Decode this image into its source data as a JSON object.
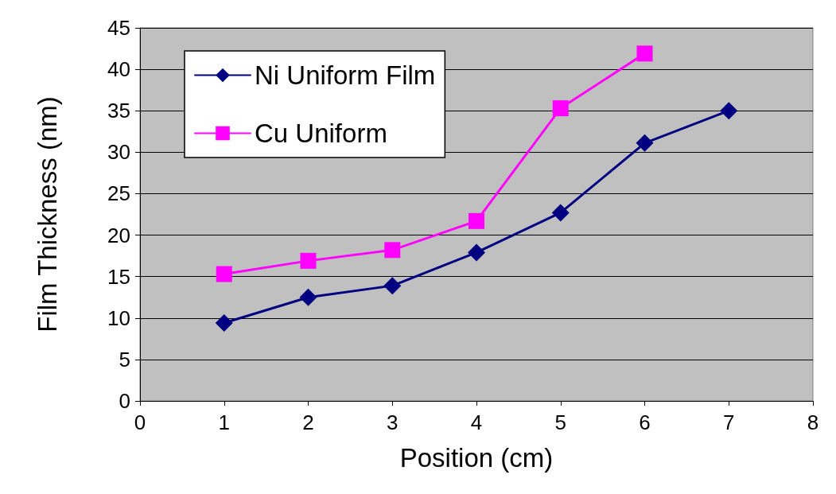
{
  "chart_data": {
    "type": "line",
    "xlabel": "Position (cm)",
    "ylabel": "Film Thickness (nm)",
    "xlim": [
      0,
      8
    ],
    "xticks": [
      0,
      1,
      2,
      3,
      4,
      5,
      6,
      7,
      8
    ],
    "ylim": [
      0,
      45
    ],
    "yticks": [
      0,
      5,
      10,
      15,
      20,
      25,
      30,
      35,
      40,
      45
    ],
    "grid": "y",
    "legend": "top left",
    "line_style": "solid",
    "series": [
      {
        "name": "Ni Uniform Film",
        "color": "#000080",
        "marker": "diamond",
        "x": [
          1,
          2,
          3,
          4,
          5,
          6,
          7
        ],
        "values": [
          9.4,
          12.5,
          13.9,
          17.9,
          22.7,
          31.1,
          35.0
        ]
      },
      {
        "name": "Cu Uniform",
        "color": "#ff00ff",
        "marker": "square",
        "x": [
          1,
          2,
          3,
          4,
          5,
          6
        ],
        "values": [
          15.3,
          16.9,
          18.2,
          21.7,
          35.3,
          41.9
        ]
      }
    ]
  }
}
